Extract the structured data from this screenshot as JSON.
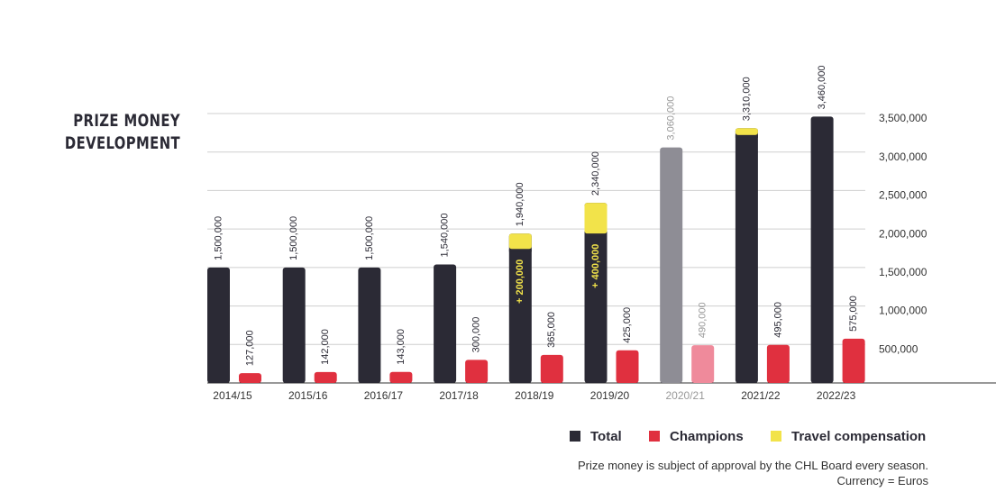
{
  "chart_data": {
    "type": "bar",
    "title": "PRIZE MONEY DEVELOPMENT",
    "categories": [
      "2014/15",
      "2015/16",
      "2016/17",
      "2017/18",
      "2018/19",
      "2019/20",
      "2020/21",
      "2021/22",
      "2022/23"
    ],
    "series": [
      {
        "name": "Total",
        "color": "#2b2a35",
        "values": [
          1500000,
          1500000,
          1500000,
          1540000,
          1940000,
          2340000,
          3060000,
          3310000,
          3460000
        ],
        "value_labels": [
          "1,500,000",
          "1,500,000",
          "1,500,000",
          "1,540,000",
          "1,940,000",
          "2,340,000",
          "3,060,000",
          "3,310,000",
          "3,460,000"
        ]
      },
      {
        "name": "Champions",
        "color": "#e0303f",
        "values": [
          127000,
          142000,
          143000,
          300000,
          365000,
          425000,
          490000,
          495000,
          575000
        ],
        "value_labels": [
          "127,000",
          "142,000",
          "143,000",
          "300,000",
          "365,000",
          "425,000",
          "490,000",
          "495,000",
          "575,000"
        ]
      },
      {
        "name": "Travel compensation",
        "color": "#f2e34a",
        "values": [
          null,
          null,
          null,
          null,
          200000,
          400000,
          null,
          90000,
          null
        ],
        "value_labels": [
          null,
          null,
          null,
          null,
          "+ 200,000",
          "+ 400,000",
          null,
          null,
          null
        ]
      }
    ],
    "muted_categories": [
      6
    ],
    "muted_colors": [
      "#8e8d95",
      "#ef8a9b"
    ],
    "ylim": [
      0,
      3500000
    ],
    "yticks": [
      {
        "value": 500000,
        "label": "500,000"
      },
      {
        "value": 1000000,
        "label": "1,000,000"
      },
      {
        "value": 1500000,
        "label": "1,500,000"
      },
      {
        "value": 2000000,
        "label": "2,000,000"
      },
      {
        "value": 2500000,
        "label": "2,500,000"
      },
      {
        "value": 3000000,
        "label": "3,000,000"
      },
      {
        "value": 3500000,
        "label": "3,500,000"
      }
    ],
    "grid": true,
    "notes": [
      "Prize money is subject of approval by the CHL Board every season.",
      "Currency = Euros"
    ]
  }
}
